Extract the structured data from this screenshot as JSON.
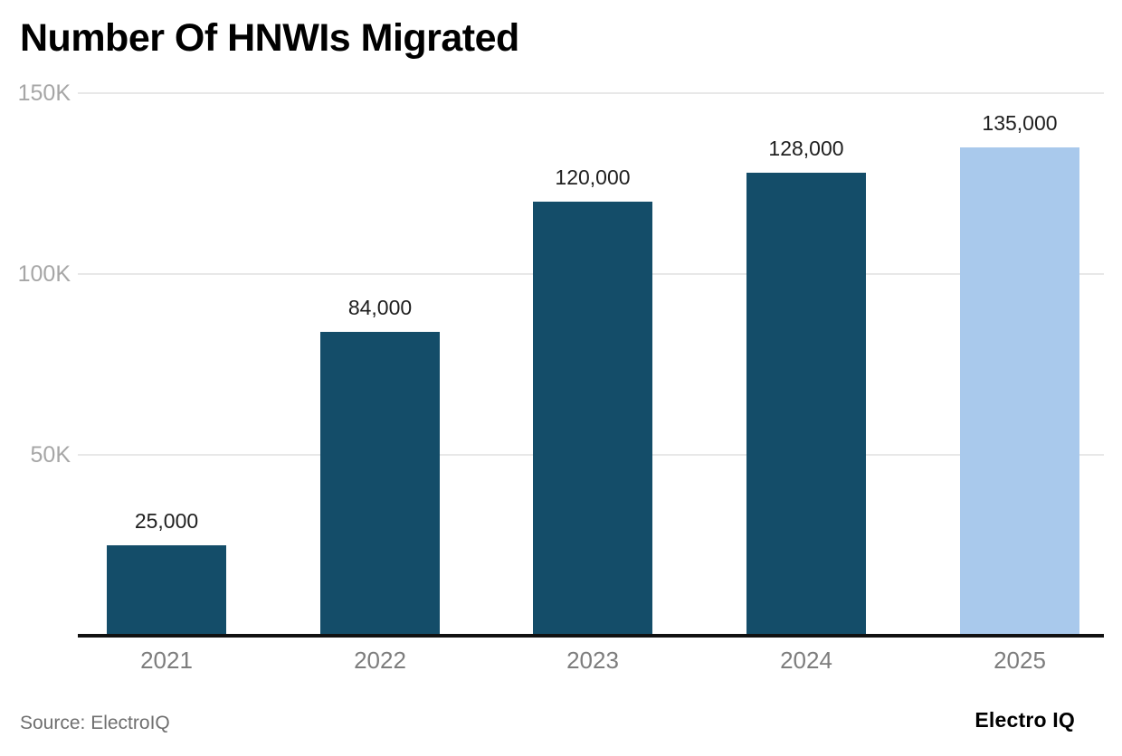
{
  "title": "Number Of HNWIs Migrated",
  "footer": {
    "source": "Source: ElectroIQ",
    "logo": "Electro IQ"
  },
  "colors": {
    "bar": "#144d69",
    "bar_highlight": "#a9c9ec",
    "grid": "#e8e8e8",
    "axis": "#111111",
    "title": "#000000",
    "value_label": "#1f1f1f",
    "x_label": "#7d7d7d",
    "y_label": "#a6a6a6",
    "source": "#6f6f6f"
  },
  "chart_data": {
    "type": "bar",
    "title": "Number Of HNWIs Migrated",
    "categories": [
      "2021",
      "2022",
      "2023",
      "2024",
      "2025"
    ],
    "values": [
      25000,
      84000,
      120000,
      128000,
      135000
    ],
    "value_labels": [
      "25,000",
      "84,000",
      "120,000",
      "128,000",
      "135,000"
    ],
    "highlight_index": 4,
    "xlabel": "",
    "ylabel": "",
    "ylim": [
      0,
      150000
    ],
    "yticks": [
      {
        "label": "50K",
        "value": 50000
      },
      {
        "label": "100K",
        "value": 100000
      },
      {
        "label": "150K",
        "value": 150000
      }
    ],
    "grid": true,
    "legend": false
  }
}
